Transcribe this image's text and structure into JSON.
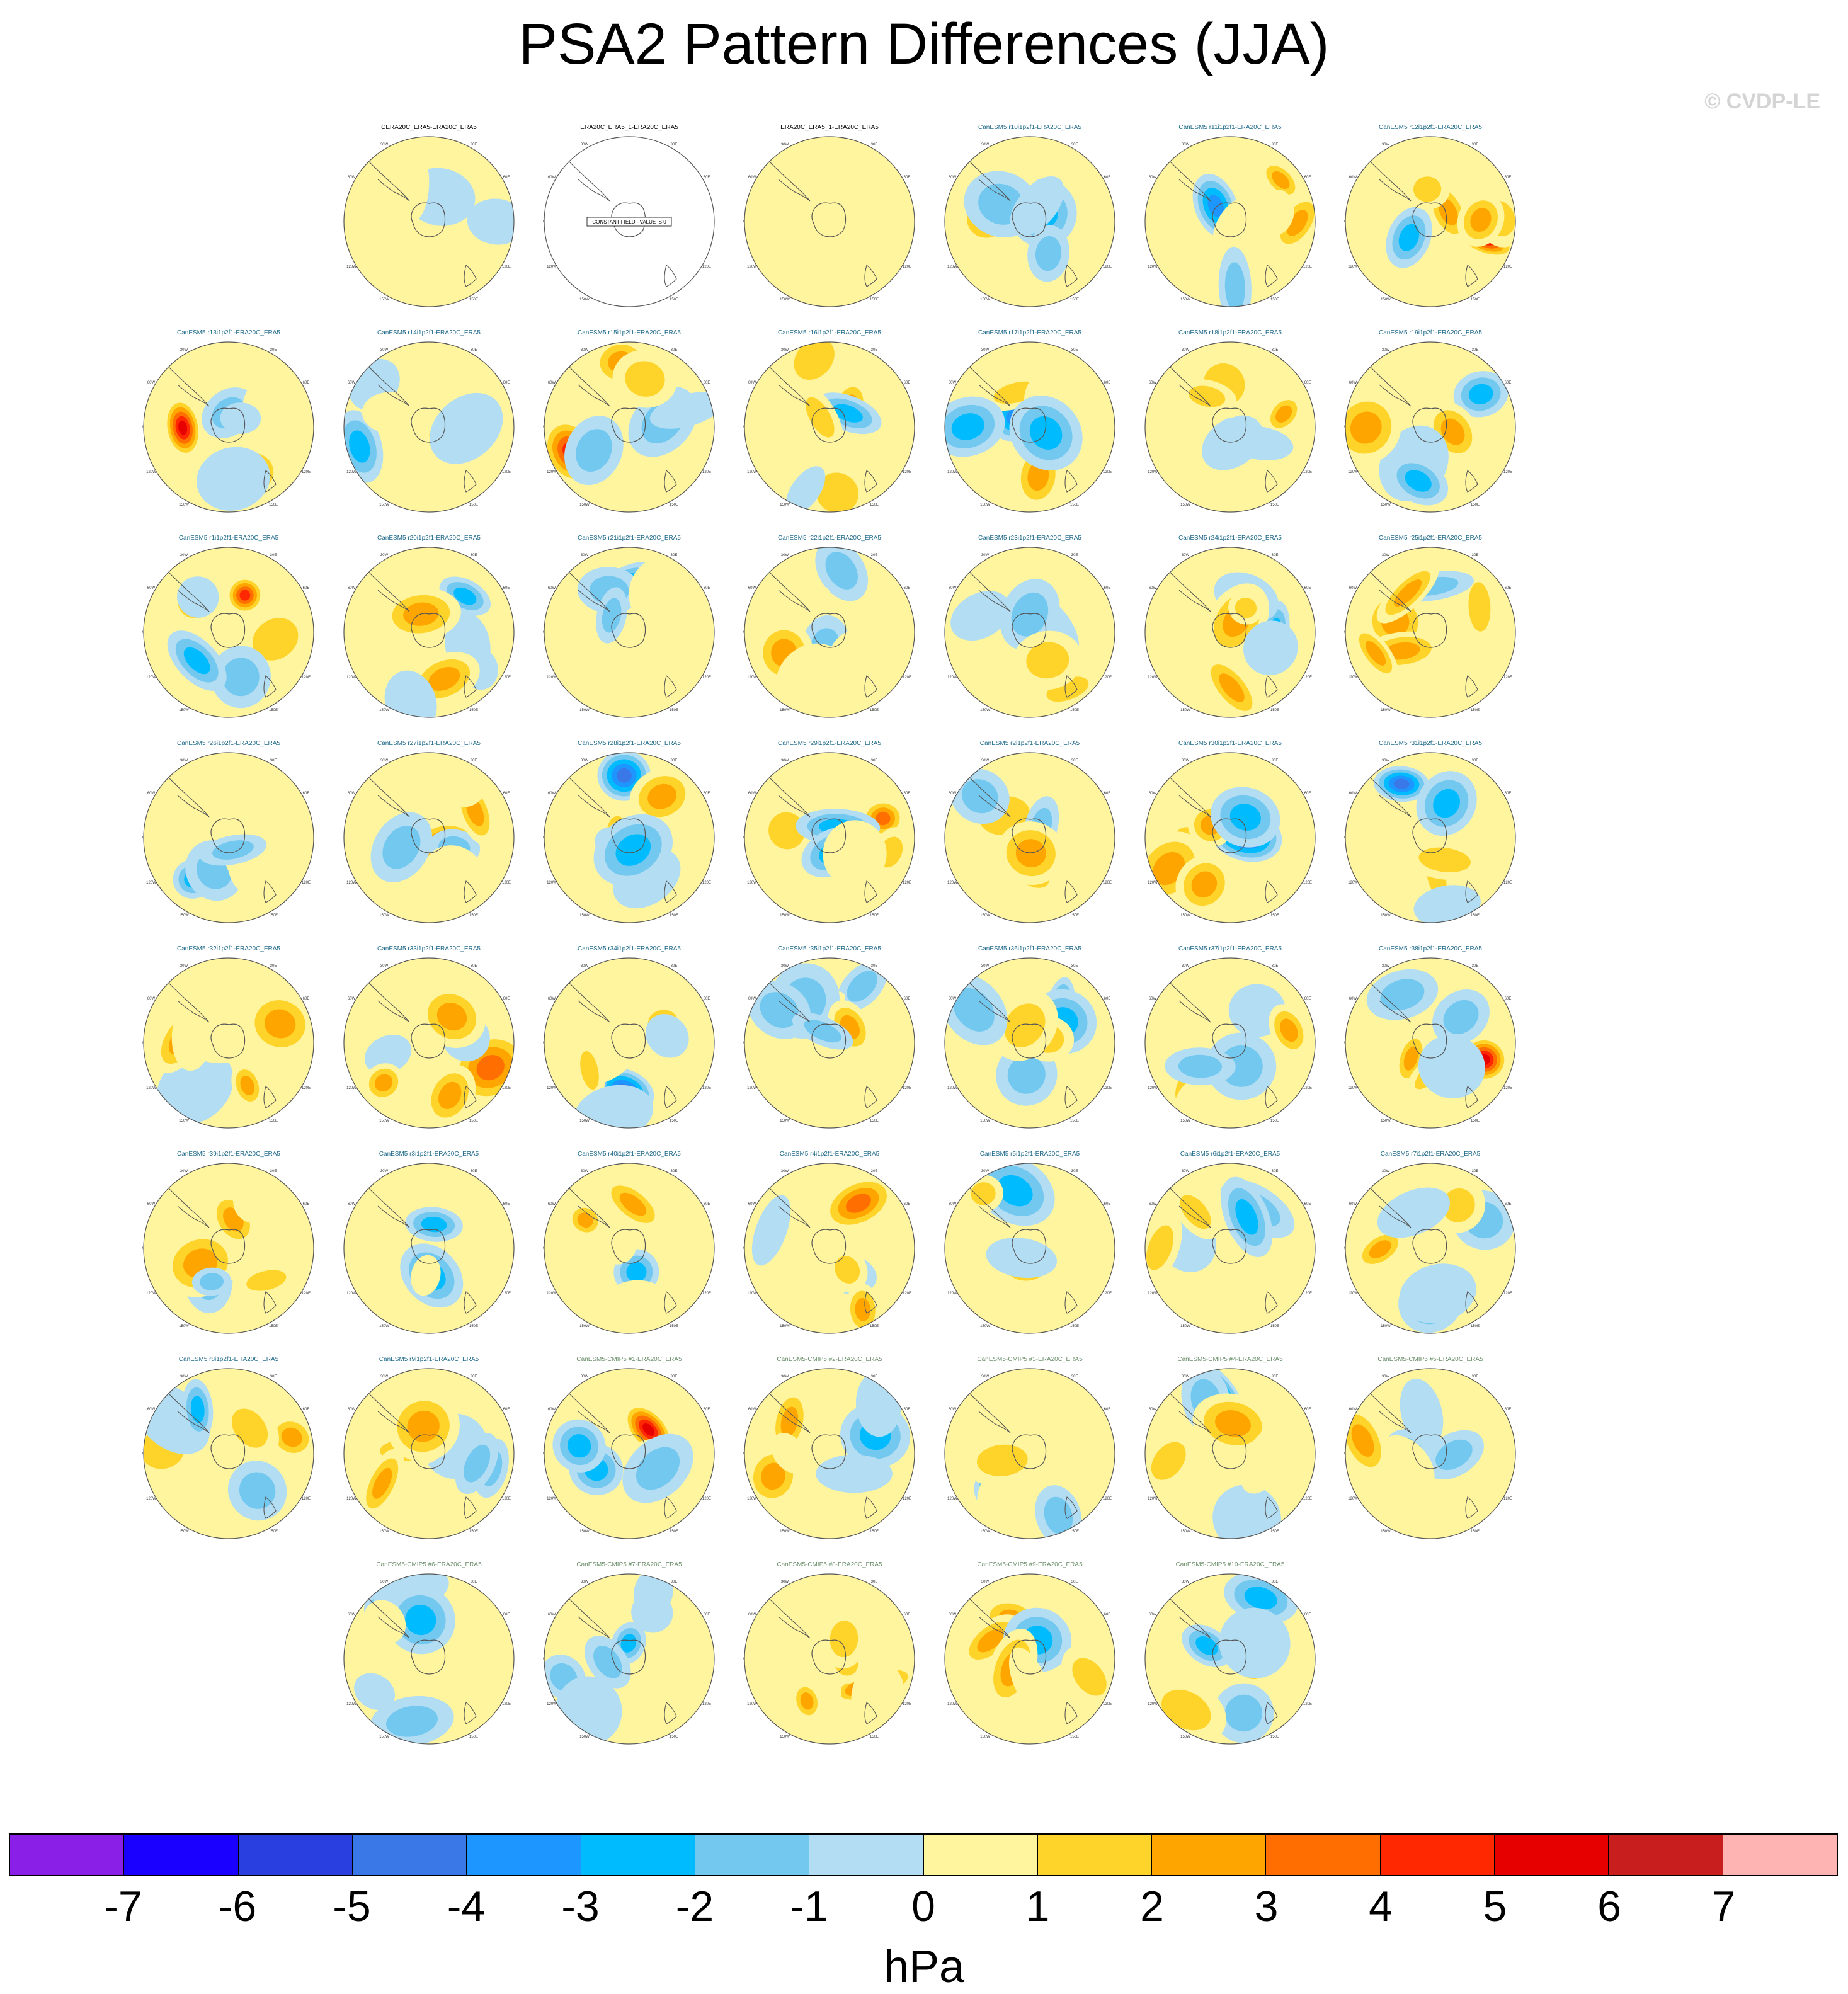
{
  "title": "PSA2 Pattern Differences (JJA)",
  "watermark": "© CVDP-LE",
  "map_labels": [
    "0",
    "30E",
    "60E",
    "90E",
    "120E",
    "150E",
    "180",
    "150W",
    "120W",
    "90W",
    "60W",
    "30W"
  ],
  "constant_field_text": "CONSTANT FIELD - VALUE IS 0",
  "colors": {
    "title_obs": "#000000",
    "title_large_ensemble": "#1f6a8a",
    "title_cmip": "#6a8e6a",
    "coast": "#555555",
    "ring": "#555555"
  },
  "chart_data": {
    "type": "map-panel-grid",
    "description_units": "hPa",
    "colorbar": {
      "label": "hPa",
      "ticks": [
        "-7",
        "-6",
        "-5",
        "-4",
        "-3",
        "-2",
        "-1",
        "0",
        "1",
        "2",
        "3",
        "4",
        "5",
        "6",
        "7"
      ],
      "colors": [
        "#8a1fe8",
        "#1a00ff",
        "#2a3fe0",
        "#3a78e8",
        "#1e96ff",
        "#00bcff",
        "#73c8f0",
        "#b3ddf2",
        "#fff59e",
        "#ffd42a",
        "#ffa500",
        "#ff6e00",
        "#ff2800",
        "#e60000",
        "#c81e1e",
        "#ffb4b4"
      ]
    },
    "panels": [
      {
        "title": "CERA20C_ERA5-ERA20C_ERA5",
        "kind": "obs"
      },
      {
        "title": "ERA20C_ERA5_1-ERA20C_ERA5",
        "kind": "obs"
      },
      {
        "title": "ERA20C_ERA5_1-ERA20C_ERA5",
        "kind": "obs"
      },
      {
        "title": "CanESM5 r10i1p2f1-ERA20C_ERA5",
        "kind": "le"
      },
      {
        "title": "CanESM5 r11i1p2f1-ERA20C_ERA5",
        "kind": "le"
      },
      {
        "title": "CanESM5 r12i1p2f1-ERA20C_ERA5",
        "kind": "le"
      },
      {
        "title": "CanESM5 r13i1p2f1-ERA20C_ERA5",
        "kind": "le"
      },
      {
        "title": "CanESM5 r14i1p2f1-ERA20C_ERA5",
        "kind": "le"
      },
      {
        "title": "CanESM5 r15i1p2f1-ERA20C_ERA5",
        "kind": "le"
      },
      {
        "title": "CanESM5 r16i1p2f1-ERA20C_ERA5",
        "kind": "le"
      },
      {
        "title": "CanESM5 r17i1p2f1-ERA20C_ERA5",
        "kind": "le"
      },
      {
        "title": "CanESM5 r18i1p2f1-ERA20C_ERA5",
        "kind": "le"
      },
      {
        "title": "CanESM5 r19i1p2f1-ERA20C_ERA5",
        "kind": "le"
      },
      {
        "title": "CanESM5 r1i1p2f1-ERA20C_ERA5",
        "kind": "le"
      },
      {
        "title": "CanESM5 r20i1p2f1-ERA20C_ERA5",
        "kind": "le"
      },
      {
        "title": "CanESM5 r21i1p2f1-ERA20C_ERA5",
        "kind": "le"
      },
      {
        "title": "CanESM5 r22i1p2f1-ERA20C_ERA5",
        "kind": "le"
      },
      {
        "title": "CanESM5 r23i1p2f1-ERA20C_ERA5",
        "kind": "le"
      },
      {
        "title": "CanESM5 r24i1p2f1-ERA20C_ERA5",
        "kind": "le"
      },
      {
        "title": "CanESM5 r25i1p2f1-ERA20C_ERA5",
        "kind": "le"
      },
      {
        "title": "CanESM5 r26i1p2f1-ERA20C_ERA5",
        "kind": "le"
      },
      {
        "title": "CanESM5 r27i1p2f1-ERA20C_ERA5",
        "kind": "le"
      },
      {
        "title": "CanESM5 r28i1p2f1-ERA20C_ERA5",
        "kind": "le"
      },
      {
        "title": "CanESM5 r29i1p2f1-ERA20C_ERA5",
        "kind": "le"
      },
      {
        "title": "CanESM5 r2i1p2f1-ERA20C_ERA5",
        "kind": "le"
      },
      {
        "title": "CanESM5 r30i1p2f1-ERA20C_ERA5",
        "kind": "le"
      },
      {
        "title": "CanESM5 r31i1p2f1-ERA20C_ERA5",
        "kind": "le"
      },
      {
        "title": "CanESM5 r32i1p2f1-ERA20C_ERA5",
        "kind": "le"
      },
      {
        "title": "CanESM5 r33i1p2f1-ERA20C_ERA5",
        "kind": "le"
      },
      {
        "title": "CanESM5 r34i1p2f1-ERA20C_ERA5",
        "kind": "le"
      },
      {
        "title": "CanESM5 r35i1p2f1-ERA20C_ERA5",
        "kind": "le"
      },
      {
        "title": "CanESM5 r36i1p2f1-ERA20C_ERA5",
        "kind": "le"
      },
      {
        "title": "CanESM5 r37i1p2f1-ERA20C_ERA5",
        "kind": "le"
      },
      {
        "title": "CanESM5 r38i1p2f1-ERA20C_ERA5",
        "kind": "le"
      },
      {
        "title": "CanESM5 r39i1p2f1-ERA20C_ERA5",
        "kind": "le"
      },
      {
        "title": "CanESM5 r3i1p2f1-ERA20C_ERA5",
        "kind": "le"
      },
      {
        "title": "CanESM5 r40i1p2f1-ERA20C_ERA5",
        "kind": "le"
      },
      {
        "title": "CanESM5 r4i1p2f1-ERA20C_ERA5",
        "kind": "le"
      },
      {
        "title": "CanESM5 r5i1p2f1-ERA20C_ERA5",
        "kind": "le"
      },
      {
        "title": "CanESM5 r6i1p2f1-ERA20C_ERA5",
        "kind": "le"
      },
      {
        "title": "CanESM5 r7i1p2f1-ERA20C_ERA5",
        "kind": "le"
      },
      {
        "title": "CanESM5 r8i1p2f1-ERA20C_ERA5",
        "kind": "le"
      },
      {
        "title": "CanESM5 r9i1p2f1-ERA20C_ERA5",
        "kind": "le"
      },
      {
        "title": "CanESM5-CMIP5 #1-ERA20C_ERA5",
        "kind": "cmip"
      },
      {
        "title": "CanESM5-CMIP5 #2-ERA20C_ERA5",
        "kind": "cmip"
      },
      {
        "title": "CanESM5-CMIP5 #3-ERA20C_ERA5",
        "kind": "cmip"
      },
      {
        "title": "CanESM5-CMIP5 #4-ERA20C_ERA5",
        "kind": "cmip"
      },
      {
        "title": "CanESM5-CMIP5 #5-ERA20C_ERA5",
        "kind": "cmip"
      },
      {
        "title": "CanESM5-CMIP5 #6-ERA20C_ERA5",
        "kind": "cmip"
      },
      {
        "title": "CanESM5-CMIP5 #7-ERA20C_ERA5",
        "kind": "cmip"
      },
      {
        "title": "CanESM5-CMIP5 #8-ERA20C_ERA5",
        "kind": "cmip"
      },
      {
        "title": "CanESM5-CMIP5 #9-ERA20C_ERA5",
        "kind": "cmip"
      },
      {
        "title": "CanESM5-CMIP5 #10-ERA20C_ERA5",
        "kind": "cmip"
      }
    ]
  }
}
